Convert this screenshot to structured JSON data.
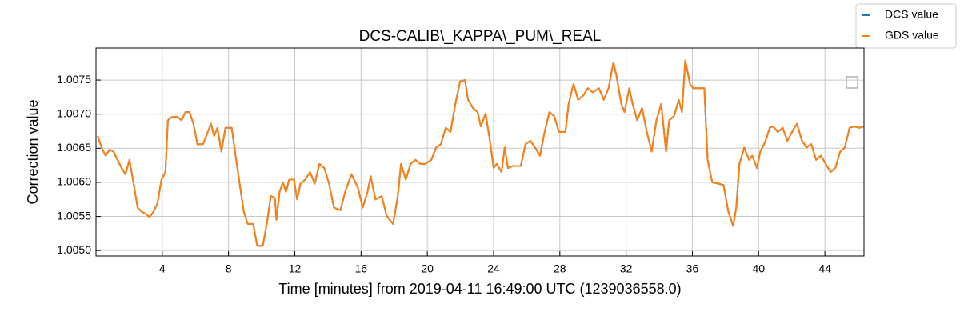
{
  "chart_data": {
    "type": "line",
    "title": "DCS-CALIB\\_KAPPA\\_PUM\\_REAL",
    "xlabel": "Time [minutes] from 2019-04-11 16:49:00 UTC (1239036558.0)",
    "ylabel": "Correction value",
    "xlim": [
      0,
      46.36
    ],
    "ylim": [
      1.00492,
      1.00797
    ],
    "xticks": [
      4,
      8,
      12,
      16,
      20,
      24,
      28,
      32,
      36,
      40,
      44
    ],
    "yticks": [
      {
        "value": 1.005,
        "label": "1.0050"
      },
      1.0055,
      {
        "value": 1.006,
        "label": "1.0060"
      },
      1.0065,
      {
        "value": 1.007,
        "label": "1.0070"
      },
      1.0075
    ],
    "grid": true,
    "legend": "outside upper right",
    "x": [
      0.1,
      0.34,
      0.58,
      0.82,
      1.06,
      1.3,
      1.54,
      1.78,
      2.02,
      2.27,
      2.51,
      2.75,
      2.99,
      3.23,
      3.47,
      3.71,
      3.95,
      4.19,
      4.34,
      4.58,
      4.92,
      5.16,
      5.4,
      5.64,
      5.88,
      6.12,
      6.46,
      6.75,
      6.94,
      7.13,
      7.33,
      7.57,
      7.81,
      8.19,
      8.39,
      8.67,
      8.92,
      9.16,
      9.49,
      9.73,
      10.07,
      10.31,
      10.55,
      10.8,
      10.89,
      11.08,
      11.28,
      11.47,
      11.66,
      11.95,
      12.14,
      12.34,
      12.63,
      12.92,
      13.2,
      13.49,
      13.78,
      14.07,
      14.36,
      14.75,
      15.04,
      15.42,
      15.81,
      16.1,
      16.39,
      16.58,
      16.87,
      17.25,
      17.54,
      17.93,
      18.22,
      18.41,
      18.7,
      18.99,
      19.28,
      19.57,
      19.86,
      20.24,
      20.53,
      20.82,
      21.11,
      21.4,
      21.69,
      21.98,
      22.27,
      22.46,
      22.75,
      23.04,
      23.23,
      23.52,
      23.81,
      24.0,
      24.19,
      24.48,
      24.67,
      24.87,
      25.16,
      25.64,
      25.93,
      26.22,
      26.51,
      26.8,
      27.08,
      27.37,
      27.66,
      27.95,
      28.34,
      28.53,
      28.82,
      29.11,
      29.4,
      29.69,
      29.98,
      30.36,
      30.65,
      30.94,
      31.23,
      31.42,
      31.71,
      31.9,
      32.19,
      32.39,
      32.67,
      32.96,
      33.25,
      33.54,
      33.83,
      34.12,
      34.41,
      34.6,
      34.89,
      35.18,
      35.37,
      35.57,
      35.86,
      36.05,
      36.43,
      36.72,
      36.92,
      37.2,
      37.59,
      37.88,
      38.17,
      38.46,
      38.65,
      38.84,
      39.13,
      39.42,
      39.61,
      39.9,
      40.1,
      40.39,
      40.67,
      40.87,
      41.16,
      41.45,
      41.73,
      42.02,
      42.31,
      42.6,
      42.89,
      43.18,
      43.47,
      43.76,
      44.05,
      44.34,
      44.63,
      44.92,
      45.2,
      45.49,
      45.78,
      46.07,
      46.36
    ],
    "series": [
      {
        "name": "DCS value",
        "color": "#1f77b4",
        "values": [
          1.00668,
          1.00651,
          1.00639,
          1.00648,
          1.00645,
          1.00633,
          1.00621,
          1.00612,
          1.00633,
          1.00598,
          1.00563,
          1.00557,
          1.00554,
          1.00549,
          1.00557,
          1.00569,
          1.00604,
          1.00615,
          1.00691,
          1.00696,
          1.00696,
          1.00691,
          1.00703,
          1.00703,
          1.00686,
          1.00656,
          1.00656,
          1.00674,
          1.00686,
          1.00668,
          1.0068,
          1.00645,
          1.0068,
          1.0068,
          1.00645,
          1.00598,
          1.00557,
          1.00539,
          1.00539,
          1.00507,
          1.00507,
          1.00539,
          1.0058,
          1.00577,
          1.00545,
          1.00586,
          1.006,
          1.00586,
          1.00604,
          1.00604,
          1.00575,
          1.00598,
          1.00604,
          1.00615,
          1.00598,
          1.00627,
          1.00621,
          1.00598,
          1.00563,
          1.00559,
          1.00586,
          1.00612,
          1.00592,
          1.00563,
          1.00586,
          1.00609,
          1.00575,
          1.0058,
          1.00551,
          1.00539,
          1.0058,
          1.00627,
          1.00604,
          1.00627,
          1.00633,
          1.00627,
          1.00627,
          1.00633,
          1.00651,
          1.00656,
          1.0068,
          1.00674,
          1.00715,
          1.00748,
          1.0075,
          1.00721,
          1.00709,
          1.00703,
          1.00682,
          1.00701,
          1.00656,
          1.00621,
          1.00627,
          1.00615,
          1.00651,
          1.00621,
          1.00624,
          1.00624,
          1.00656,
          1.00661,
          1.00651,
          1.00639,
          1.00674,
          1.00703,
          1.00697,
          1.00674,
          1.00674,
          1.00715,
          1.00744,
          1.00721,
          1.00727,
          1.00738,
          1.00732,
          1.00738,
          1.00721,
          1.00738,
          1.00776,
          1.00756,
          1.00715,
          1.00703,
          1.00738,
          1.00715,
          1.00691,
          1.00709,
          1.00674,
          1.00645,
          1.00691,
          1.00715,
          1.00645,
          1.00691,
          1.00697,
          1.00721,
          1.00703,
          1.00779,
          1.00744,
          1.00738,
          1.00738,
          1.00738,
          1.00633,
          1.006,
          1.00598,
          1.00596,
          1.00557,
          1.00536,
          1.00563,
          1.00627,
          1.00651,
          1.00633,
          1.00639,
          1.00621,
          1.00645,
          1.00659,
          1.0068,
          1.00682,
          1.00674,
          1.0068,
          1.00661,
          1.00674,
          1.00686,
          1.00662,
          1.00651,
          1.00656,
          1.00633,
          1.00639,
          1.00627,
          1.00615,
          1.00621,
          1.00645,
          1.00651,
          1.0068,
          1.00682,
          1.0068,
          1.00682
        ]
      },
      {
        "name": "GDS value",
        "color": "#ff7f0e",
        "values": [
          1.00668,
          1.00651,
          1.00639,
          1.00648,
          1.00645,
          1.00633,
          1.00621,
          1.00612,
          1.00633,
          1.00598,
          1.00563,
          1.00557,
          1.00554,
          1.00549,
          1.00557,
          1.00569,
          1.00604,
          1.00615,
          1.00691,
          1.00696,
          1.00696,
          1.00691,
          1.00703,
          1.00703,
          1.00686,
          1.00656,
          1.00656,
          1.00674,
          1.00686,
          1.00668,
          1.0068,
          1.00645,
          1.0068,
          1.0068,
          1.00645,
          1.00598,
          1.00557,
          1.00539,
          1.00539,
          1.00507,
          1.00507,
          1.00539,
          1.0058,
          1.00577,
          1.00545,
          1.00586,
          1.006,
          1.00586,
          1.00604,
          1.00604,
          1.00575,
          1.00598,
          1.00604,
          1.00615,
          1.00598,
          1.00627,
          1.00621,
          1.00598,
          1.00563,
          1.00559,
          1.00586,
          1.00612,
          1.00592,
          1.00563,
          1.00586,
          1.00609,
          1.00575,
          1.0058,
          1.00551,
          1.00539,
          1.0058,
          1.00627,
          1.00604,
          1.00627,
          1.00633,
          1.00627,
          1.00627,
          1.00633,
          1.00651,
          1.00656,
          1.0068,
          1.00674,
          1.00715,
          1.00748,
          1.0075,
          1.00721,
          1.00709,
          1.00703,
          1.00682,
          1.00701,
          1.00656,
          1.00621,
          1.00627,
          1.00615,
          1.00651,
          1.00621,
          1.00624,
          1.00624,
          1.00656,
          1.00661,
          1.00651,
          1.00639,
          1.00674,
          1.00703,
          1.00697,
          1.00674,
          1.00674,
          1.00715,
          1.00744,
          1.00721,
          1.00727,
          1.00738,
          1.00732,
          1.00738,
          1.00721,
          1.00738,
          1.00776,
          1.00756,
          1.00715,
          1.00703,
          1.00738,
          1.00715,
          1.00691,
          1.00709,
          1.00674,
          1.00645,
          1.00691,
          1.00715,
          1.00645,
          1.00691,
          1.00697,
          1.00721,
          1.00703,
          1.00779,
          1.00744,
          1.00738,
          1.00738,
          1.00738,
          1.00633,
          1.006,
          1.00598,
          1.00596,
          1.00557,
          1.00536,
          1.00563,
          1.00627,
          1.00651,
          1.00633,
          1.00639,
          1.00621,
          1.00645,
          1.00659,
          1.0068,
          1.00682,
          1.00674,
          1.0068,
          1.00661,
          1.00674,
          1.00686,
          1.00662,
          1.00651,
          1.00656,
          1.00633,
          1.00639,
          1.00627,
          1.00615,
          1.00621,
          1.00645,
          1.00651,
          1.0068,
          1.00682,
          1.0068,
          1.00682
        ]
      }
    ]
  }
}
